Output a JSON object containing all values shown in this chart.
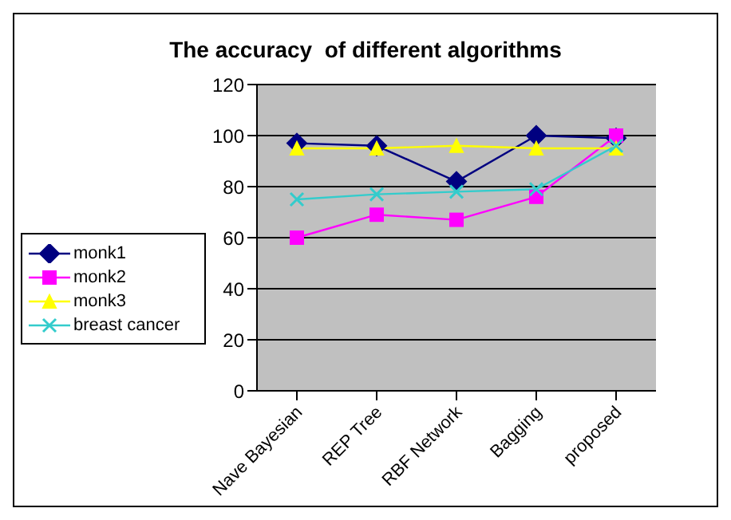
{
  "chart_data": {
    "type": "line",
    "title": "The accuracy  of different algorithms",
    "categories": [
      "Nave Bayesian",
      "REP Tree",
      "RBF Network",
      "Bagging",
      "proposed"
    ],
    "series": [
      {
        "name": "monk1",
        "color": "#000080",
        "values": [
          97,
          96,
          82,
          100,
          99
        ],
        "marker": "diamond"
      },
      {
        "name": "monk2",
        "color": "#ff00ff",
        "values": [
          60,
          69,
          67,
          76,
          100
        ],
        "marker": "square"
      },
      {
        "name": "monk3",
        "color": "#ffff00",
        "values": [
          95,
          95,
          96,
          95,
          95
        ],
        "marker": "triangle"
      },
      {
        "name": "breast cancer",
        "color": "#33cccc",
        "values": [
          75,
          77,
          78,
          79,
          96
        ],
        "marker": "cross"
      }
    ],
    "ylim": [
      0,
      120
    ],
    "yticks": [
      0,
      20,
      40,
      60,
      80,
      100,
      120
    ],
    "grid": "y",
    "legend": "left"
  }
}
